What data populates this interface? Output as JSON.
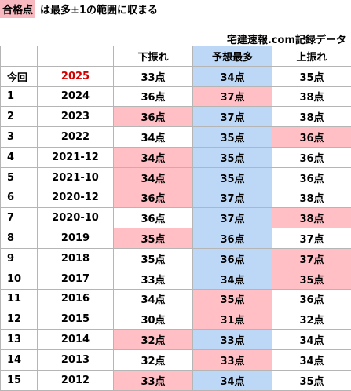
{
  "note": {
    "badge": "合格点",
    "text": "は最多±1の範囲に収まる"
  },
  "source": "宅建速報.com記録データ",
  "header": {
    "col0": "",
    "col1": "",
    "lower": "下振れ",
    "predicted": "予想最多",
    "upper": "上振れ"
  },
  "colors": {
    "pink": "#ffbfc5",
    "blue": "#bcd8f6",
    "red_text": "#d40000"
  },
  "rows": [
    {
      "idx": "今回",
      "year": "2025",
      "lower": "33点",
      "pred": "34点",
      "upper": "35点"
    },
    {
      "idx": "1",
      "year": "2024",
      "lower": "36点",
      "pred": "37点",
      "upper": "38点"
    },
    {
      "idx": "2",
      "year": "2023",
      "lower": "36点",
      "pred": "37点",
      "upper": "38点"
    },
    {
      "idx": "3",
      "year": "2022",
      "lower": "34点",
      "pred": "35点",
      "upper": "36点"
    },
    {
      "idx": "4",
      "year": "2021-12",
      "lower": "34点",
      "pred": "35点",
      "upper": "36点"
    },
    {
      "idx": "5",
      "year": "2021-10",
      "lower": "34点",
      "pred": "35点",
      "upper": "36点"
    },
    {
      "idx": "6",
      "year": "2020-12",
      "lower": "36点",
      "pred": "37点",
      "upper": "38点"
    },
    {
      "idx": "7",
      "year": "2020-10",
      "lower": "36点",
      "pred": "37点",
      "upper": "38点"
    },
    {
      "idx": "8",
      "year": "2019",
      "lower": "35点",
      "pred": "36点",
      "upper": "37点"
    },
    {
      "idx": "9",
      "year": "2018",
      "lower": "35点",
      "pred": "36点",
      "upper": "37点"
    },
    {
      "idx": "10",
      "year": "2017",
      "lower": "33点",
      "pred": "34点",
      "upper": "35点"
    },
    {
      "idx": "11",
      "year": "2016",
      "lower": "34点",
      "pred": "35点",
      "upper": "36点"
    },
    {
      "idx": "12",
      "year": "2015",
      "lower": "30点",
      "pred": "31点",
      "upper": "32点"
    },
    {
      "idx": "13",
      "year": "2014",
      "lower": "32点",
      "pred": "33点",
      "upper": "34点"
    },
    {
      "idx": "14",
      "year": "2013",
      "lower": "32点",
      "pred": "33点",
      "upper": "34点"
    },
    {
      "idx": "15",
      "year": "2012",
      "lower": "33点",
      "pred": "34点",
      "upper": "35点"
    }
  ]
}
